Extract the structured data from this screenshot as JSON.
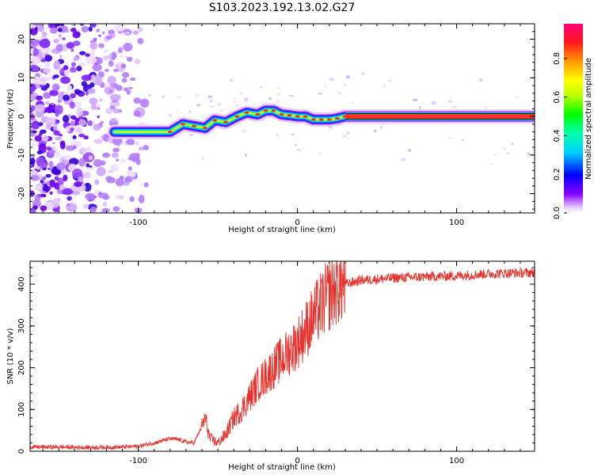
{
  "title": "S103.2023.192.13.02.G27",
  "chart_data": [
    {
      "type": "heatmap",
      "xlabel": "Height of straight line (km)",
      "ylabel": "Frequency (Hz)",
      "xlim": [
        -168,
        149
      ],
      "ylim": [
        -25,
        24
      ],
      "x_ticks": [
        -100,
        0,
        100
      ],
      "y_ticks": [
        -20,
        -10,
        0,
        10,
        20
      ],
      "colorbar": {
        "label": "Normalized spectral amplitude",
        "range": [
          0,
          0.98
        ],
        "ticks": [
          "0.0",
          "0.2",
          "0.4",
          "0.6",
          "0.8"
        ]
      },
      "ridge": {
        "x": [
          -115,
          -100,
          -90,
          -80,
          -72,
          -65,
          -58,
          -52,
          -45,
          -38,
          -32,
          -25,
          -20,
          -15,
          -10,
          -5,
          0,
          5,
          10,
          15,
          20,
          25,
          30,
          40,
          60,
          80,
          100,
          120,
          149
        ],
        "y": [
          -4.0,
          -4.0,
          -4.0,
          -4.0,
          -2.0,
          -2.5,
          -3.0,
          -1.0,
          -1.5,
          0.0,
          1.0,
          0.5,
          1.5,
          1.5,
          0.5,
          0.3,
          0.0,
          0.0,
          -0.8,
          -0.8,
          -0.8,
          -0.5,
          0.0,
          0.0,
          0.0,
          0.0,
          0.0,
          0.0,
          0.0
        ]
      },
      "noise_region_x": [
        -168,
        -95
      ]
    },
    {
      "type": "line",
      "xlabel": "Height of straight line (km)",
      "ylabel": "SNR (10 * v/v)",
      "xlim": [
        -168,
        149
      ],
      "ylim": [
        0,
        455
      ],
      "x_ticks": [
        -100,
        0,
        100
      ],
      "y_ticks": [
        0,
        100,
        200,
        300,
        400
      ],
      "series": [
        {
          "color": "#e8312b",
          "x": [
            -168,
            -150,
            -130,
            -110,
            -100,
            -90,
            -80,
            -75,
            -70,
            -65,
            -60,
            -58,
            -55,
            -50,
            -45,
            -40,
            -35,
            -30,
            -25,
            -20,
            -15,
            -10,
            -5,
            0,
            5,
            10,
            15,
            20,
            25,
            30,
            40,
            50,
            60,
            80,
            100,
            120,
            149
          ],
          "y": [
            10,
            10,
            9,
            10,
            12,
            20,
            30,
            28,
            22,
            20,
            60,
            80,
            30,
            20,
            40,
            80,
            100,
            130,
            160,
            180,
            200,
            220,
            240,
            260,
            290,
            320,
            350,
            375,
            395,
            400,
            410,
            412,
            415,
            418,
            420,
            425,
            428
          ]
        }
      ]
    }
  ]
}
